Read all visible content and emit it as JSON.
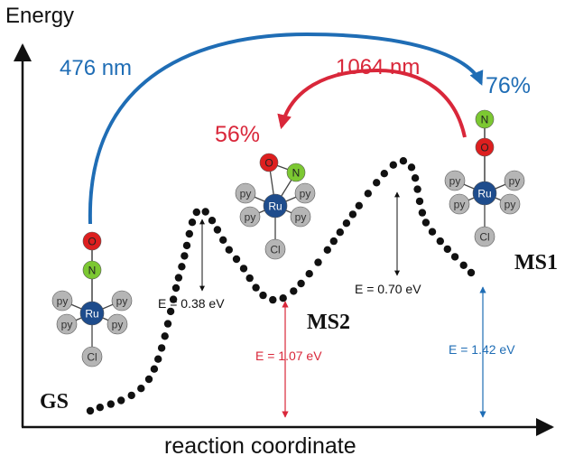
{
  "axes": {
    "y_label": "Energy",
    "x_label": "reaction coordinate"
  },
  "transitions": [
    {
      "wavelength": "476 nm",
      "color": "#1f6db5"
    },
    {
      "wavelength": "1064 nm",
      "color": "#d9273a"
    }
  ],
  "populations": {
    "ms1": "76%",
    "ms2": "56%"
  },
  "states": {
    "gs": "GS",
    "ms1": "MS1",
    "ms2": "MS2"
  },
  "energies": {
    "barrier_ms2": "E = 0.38 eV",
    "barrier_ms1": "E = 0.70 eV",
    "ms2_level": "E = 1.07 eV",
    "ms1_level": "E = 1.42 eV"
  },
  "molecule": {
    "metal": "Ru",
    "ligand": "py",
    "halide": "Cl",
    "nitrogen": "N",
    "oxygen": "O"
  },
  "colors": {
    "blue": "#1f6db5",
    "red": "#d9273a",
    "ru": "#1e4c8c",
    "ligand": "#b5b5b5",
    "oxygen": "#dd1f1f",
    "nitrogen": "#7cc832"
  }
}
